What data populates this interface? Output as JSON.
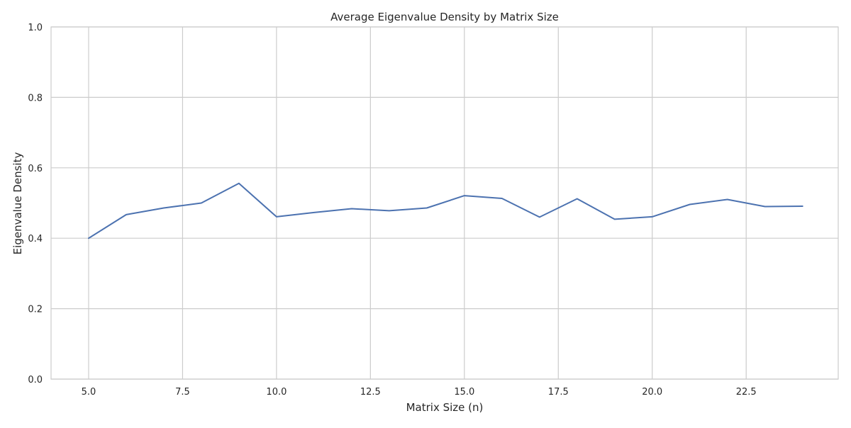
{
  "chart_data": {
    "type": "line",
    "title": "Average Eigenvalue Density by Matrix Size",
    "xlabel": "Matrix Size (n)",
    "ylabel": "Eigenvalue Density",
    "xlim": [
      4.0,
      24.95
    ],
    "ylim": [
      0.0,
      1.0
    ],
    "x_ticks": [
      5.0,
      7.5,
      10.0,
      12.5,
      15.0,
      17.5,
      20.0,
      22.5
    ],
    "x_tick_labels": [
      "5.0",
      "7.5",
      "10.0",
      "12.5",
      "15.0",
      "17.5",
      "20.0",
      "22.5"
    ],
    "y_ticks": [
      0.0,
      0.2,
      0.4,
      0.6,
      0.8,
      1.0
    ],
    "y_tick_labels": [
      "0.0",
      "0.2",
      "0.4",
      "0.6",
      "0.8",
      "1.0"
    ],
    "grid": true,
    "series": [
      {
        "color": "#4c72b0",
        "x": [
          5,
          6,
          7,
          8,
          9,
          10,
          11,
          12,
          13,
          14,
          15,
          16,
          17,
          18,
          19,
          20,
          21,
          22,
          23,
          24
        ],
        "y": [
          0.4,
          0.467,
          0.486,
          0.5,
          0.556,
          0.461,
          0.473,
          0.484,
          0.478,
          0.486,
          0.521,
          0.513,
          0.46,
          0.512,
          0.454,
          0.461,
          0.496,
          0.51,
          0.49,
          0.491
        ]
      }
    ]
  }
}
